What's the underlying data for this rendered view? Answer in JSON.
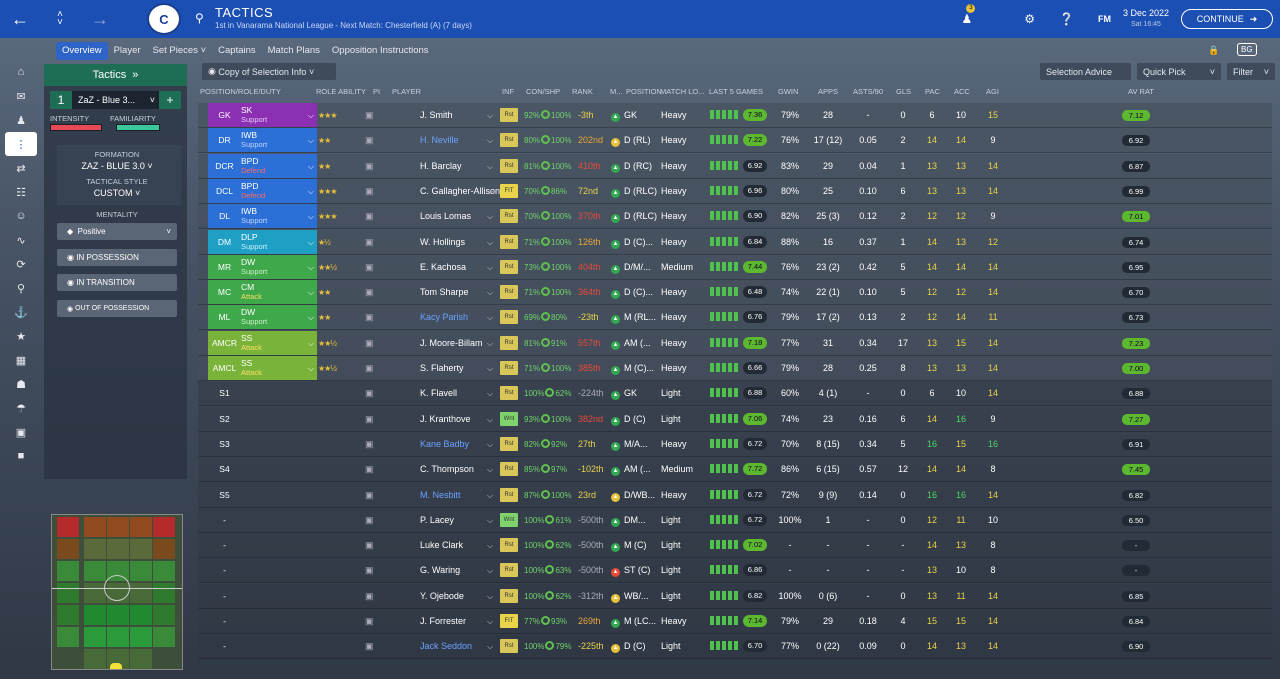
{
  "header": {
    "title": "TACTICS",
    "subtitle": "1st in Vanarama National League - Next Match: Chesterfield (A) (7 days)",
    "date": "3 Dec 2022",
    "time": "Sat 16:45",
    "continue_label": "CONTINUE",
    "notif_count": "3",
    "fm_label": "FM",
    "crest_text": "C"
  },
  "tabs": [
    "Overview",
    "Player",
    "Set Pieces",
    "Captains",
    "Match Plans",
    "Opposition Instructions"
  ],
  "left": {
    "tactics_label": "Tactics",
    "slot_number": "1",
    "tactic_name": "ZaZ - Blue 3...",
    "intensity_label": "INTENSITY",
    "familiarity_label": "FAMILIARITY",
    "formation_label": "FORMATION",
    "formation_value": "ZAZ - BLUE 3.0",
    "style_label": "TACTICAL STYLE",
    "style_value": "CUSTOM",
    "mentality_label": "MENTALITY",
    "mentality_value": "Positive",
    "in_possession": "IN POSSESSION",
    "in_transition": "IN TRANSITION",
    "out_possession": "OUT OF POSSESSION"
  },
  "toolbar": {
    "copy": "Copy of Selection Info",
    "selection_advice": "Selection Advice",
    "quick_pick": "Quick Pick",
    "filter": "Filter"
  },
  "headers": {
    "position": "POSITION/ROLE/DUTY",
    "role_ability": "ROLE ABILITY",
    "pi": "PI",
    "player": "PLAYER",
    "inf": "INF",
    "con": "CON/SHP",
    "rank": "RANK",
    "m": "M...",
    "positions": "POSITION",
    "match_load": "MATCH LO...",
    "last5": "LAST 5 GAMES",
    "gwin": "GWIN",
    "apps": "APPS",
    "asts": "ASTS/90",
    "gls": "GLS",
    "pac": "PAC",
    "acc": "ACC",
    "agi": "AGI",
    "avrat": "AV RAT"
  },
  "rows": [
    {
      "pos": "GK",
      "role": "SK",
      "duty": "Support",
      "roleColor": "#8b2fb3",
      "dutyColor": "#e6c6f5",
      "stars": "★★★",
      "player": "J. Smith",
      "link": false,
      "inf": "Rst",
      "con": "92%",
      "shp": "100%",
      "rank": "-3th",
      "rankColor": "#e8d34a",
      "dotColor": "#32a852",
      "posn": "GK",
      "load": "Heavy",
      "last": [
        "#4fc24d",
        "#4fc24d",
        "#4fc24d",
        "#4fc24d",
        "#4fc24d"
      ],
      "rating": "7.36",
      "rtBg": "#5cb82e",
      "gwin": "79%",
      "apps": "28",
      "asts": "-",
      "gls": "0",
      "pac": "6",
      "acc": "10",
      "agi": "15",
      "pacC": "wh",
      "accC": "wh",
      "agiC": "ye",
      "av": "7.12",
      "avBg": "#5cb82e"
    },
    {
      "pos": "DR",
      "role": "IWB",
      "duty": "Support",
      "roleColor": "#2c6fd6",
      "dutyColor": "#bfd6ff",
      "stars": "★★",
      "player": "H. Neville",
      "link": true,
      "inf": "Rst",
      "con": "80%",
      "shp": "100%",
      "rank": "202nd",
      "rankColor": "#e8a63a",
      "dotColor": "#e8c13a",
      "posn": "D (RL)",
      "load": "Heavy",
      "last": [
        "#4fc24d",
        "#4fc24d",
        "#4fc24d",
        "#4fc24d",
        "#4fc24d"
      ],
      "rating": "7.22",
      "rtBg": "#5cb82e",
      "gwin": "76%",
      "apps": "17 (12)",
      "asts": "0.05",
      "gls": "2",
      "pac": "14",
      "acc": "14",
      "agi": "9",
      "pacC": "ye",
      "accC": "ye",
      "agiC": "wh",
      "av": "6.92",
      "avBg": "#222a35"
    },
    {
      "pos": "DCR",
      "role": "BPD",
      "duty": "Defend",
      "roleColor": "#2c6fd6",
      "dutyColor": "#ff6a6a",
      "stars": "★★",
      "player": "H. Barclay",
      "link": false,
      "inf": "Rst",
      "con": "81%",
      "shp": "100%",
      "rank": "410th",
      "rankColor": "#e84a3a",
      "dotColor": "#32a852",
      "posn": "D (RC)",
      "load": "Heavy",
      "last": [
        "#4fc24d",
        "#4fc24d",
        "#4fc24d",
        "#4fc24d",
        "#4fc24d"
      ],
      "rating": "6.92",
      "rtBg": "#222a35",
      "gwin": "83%",
      "apps": "29",
      "asts": "0.04",
      "gls": "1",
      "pac": "13",
      "acc": "13",
      "agi": "14",
      "pacC": "ye",
      "accC": "ye",
      "agiC": "ye",
      "av": "6.87",
      "avBg": "#222a35"
    },
    {
      "pos": "DCL",
      "role": "BPD",
      "duty": "Defend",
      "roleColor": "#2c6fd6",
      "dutyColor": "#ff6a6a",
      "stars": "★★★",
      "player": "C. Gallagher-Allison",
      "link": false,
      "inf": "FIT",
      "con": "70%",
      "shp": "86%",
      "rank": "72nd",
      "rankColor": "#e8d34a",
      "dotColor": "#32a852",
      "posn": "D (RLC)",
      "load": "Heavy",
      "last": [
        "#4fc24d",
        "#4fc24d",
        "#4fc24d",
        "#4fc24d",
        "#4fc24d"
      ],
      "rating": "6.96",
      "rtBg": "#222a35",
      "gwin": "80%",
      "apps": "25",
      "asts": "0.10",
      "gls": "6",
      "pac": "13",
      "acc": "13",
      "agi": "14",
      "pacC": "ye",
      "accC": "ye",
      "agiC": "ye",
      "av": "6.99",
      "avBg": "#222a35"
    },
    {
      "pos": "DL",
      "role": "IWB",
      "duty": "Support",
      "roleColor": "#2c6fd6",
      "dutyColor": "#bfd6ff",
      "stars": "★★★",
      "player": "Louis Lomas",
      "link": false,
      "inf": "Rst",
      "con": "70%",
      "shp": "100%",
      "rank": "370th",
      "rankColor": "#e84a3a",
      "dotColor": "#32a852",
      "posn": "D (RLC)",
      "load": "Heavy",
      "last": [
        "#4fc24d",
        "#4fc24d",
        "#4fc24d",
        "#4fc24d",
        "#4fc24d"
      ],
      "rating": "6.90",
      "rtBg": "#222a35",
      "gwin": "82%",
      "apps": "25 (3)",
      "asts": "0.12",
      "gls": "2",
      "pac": "12",
      "acc": "12",
      "agi": "9",
      "pacC": "ye",
      "accC": "ye",
      "agiC": "wh",
      "av": "7.01",
      "avBg": "#5cb82e"
    },
    {
      "pos": "DM",
      "role": "DLP",
      "duty": "Support",
      "roleColor": "#1f9fc4",
      "dutyColor": "#c7f0ff",
      "stars": "★½",
      "player": "W. Hollings",
      "link": false,
      "inf": "Rst",
      "con": "71%",
      "shp": "100%",
      "rank": "126th",
      "rankColor": "#e8a63a",
      "dotColor": "#32a852",
      "posn": "D (C)...",
      "load": "Heavy",
      "last": [
        "#4fc24d",
        "#4fc24d",
        "#4fc24d",
        "#4fc24d",
        "#4fc24d"
      ],
      "rating": "6.84",
      "rtBg": "#222a35",
      "gwin": "88%",
      "apps": "16",
      "asts": "0.37",
      "gls": "1",
      "pac": "14",
      "acc": "13",
      "agi": "12",
      "pacC": "ye",
      "accC": "ye",
      "agiC": "ye",
      "av": "6.74",
      "avBg": "#222a35"
    },
    {
      "pos": "MR",
      "role": "DW",
      "duty": "Support",
      "roleColor": "#3fa84a",
      "dutyColor": "#c9f0c8",
      "stars": "★★½",
      "player": "E. Kachosa",
      "link": false,
      "inf": "Rst",
      "con": "73%",
      "shp": "100%",
      "rank": "404th",
      "rankColor": "#e84a3a",
      "dotColor": "#32a852",
      "posn": "D/M/...",
      "load": "Medium",
      "last": [
        "#4fc24d",
        "#4fc24d",
        "#4fc24d",
        "#4fc24d",
        "#4fc24d"
      ],
      "rating": "7.44",
      "rtBg": "#5cb82e",
      "gwin": "76%",
      "apps": "23 (2)",
      "asts": "0.42",
      "gls": "5",
      "pac": "14",
      "acc": "14",
      "agi": "14",
      "pacC": "ye",
      "accC": "ye",
      "agiC": "ye",
      "av": "6.95",
      "avBg": "#222a35"
    },
    {
      "pos": "MC",
      "role": "CM",
      "duty": "Attack",
      "roleColor": "#3fa84a",
      "dutyColor": "#ffe066",
      "stars": "★★",
      "player": "Tom Sharpe",
      "link": false,
      "inf": "Rst",
      "con": "71%",
      "shp": "100%",
      "rank": "364th",
      "rankColor": "#e84a3a",
      "dotColor": "#32a852",
      "posn": "D (C)...",
      "load": "Heavy",
      "last": [
        "#4fc24d",
        "#4fc24d",
        "#4fc24d",
        "#4fc24d",
        "#4fc24d"
      ],
      "rating": "6.48",
      "rtBg": "#222a35",
      "gwin": "74%",
      "apps": "22 (1)",
      "asts": "0.10",
      "gls": "5",
      "pac": "12",
      "acc": "12",
      "agi": "14",
      "pacC": "ye",
      "accC": "ye",
      "agiC": "ye",
      "av": "6.70",
      "avBg": "#222a35"
    },
    {
      "pos": "ML",
      "role": "DW",
      "duty": "Support",
      "roleColor": "#3fa84a",
      "dutyColor": "#c9f0c8",
      "stars": "★★",
      "player": "Kacy Parish",
      "link": true,
      "inf": "Rst",
      "con": "69%",
      "shp": "80%",
      "rank": "-23th",
      "rankColor": "#e8d34a",
      "dotColor": "#32a852",
      "posn": "M (RL...",
      "load": "Heavy",
      "last": [
        "#4fc24d",
        "#4fc24d",
        "#4fc24d",
        "#4fc24d",
        "#4fc24d"
      ],
      "rating": "6.76",
      "rtBg": "#222a35",
      "gwin": "79%",
      "apps": "17 (2)",
      "asts": "0.13",
      "gls": "2",
      "pac": "12",
      "acc": "14",
      "agi": "11",
      "pacC": "ye",
      "accC": "ye",
      "agiC": "ye",
      "av": "6.73",
      "avBg": "#222a35"
    },
    {
      "pos": "AMCR",
      "role": "SS",
      "duty": "Attack",
      "roleColor": "#7ab33a",
      "dutyColor": "#ffe066",
      "stars": "★★½",
      "player": "J. Moore-Billam",
      "link": false,
      "inf": "Rst",
      "con": "81%",
      "shp": "91%",
      "rank": "557th",
      "rankColor": "#e84a3a",
      "dotColor": "#32a852",
      "posn": "AM (...",
      "load": "Heavy",
      "last": [
        "#4fc24d",
        "#4fc24d",
        "#4fc24d",
        "#4fc24d",
        "#4fc24d"
      ],
      "rating": "7.18",
      "rtBg": "#5cb82e",
      "gwin": "77%",
      "apps": "31",
      "asts": "0.34",
      "gls": "17",
      "pac": "13",
      "acc": "15",
      "agi": "14",
      "pacC": "ye",
      "accC": "ye",
      "agiC": "ye",
      "av": "7.23",
      "avBg": "#5cb82e"
    },
    {
      "pos": "AMCL",
      "role": "SS",
      "duty": "Attack",
      "roleColor": "#7ab33a",
      "dutyColor": "#ffe066",
      "stars": "★★½",
      "player": "S. Flaherty",
      "link": false,
      "inf": "Rst",
      "con": "71%",
      "shp": "100%",
      "rank": "385th",
      "rankColor": "#e84a3a",
      "dotColor": "#32a852",
      "posn": "M (C)...",
      "load": "Heavy",
      "last": [
        "#4fc24d",
        "#4fc24d",
        "#4fc24d",
        "#4fc24d",
        "#4fc24d"
      ],
      "rating": "6.66",
      "rtBg": "#222a35",
      "gwin": "79%",
      "apps": "28",
      "asts": "0.25",
      "gls": "8",
      "pac": "13",
      "acc": "13",
      "agi": "14",
      "pacC": "ye",
      "accC": "ye",
      "agiC": "ye",
      "av": "7.00",
      "avBg": "#5cb82e"
    },
    {
      "pos": "S1",
      "role": "",
      "duty": "",
      "roleColor": "",
      "dutyColor": "",
      "stars": "",
      "player": "K. Flavell",
      "link": false,
      "inf": "Rst",
      "con": "100%",
      "shp": "62%",
      "rank": "-224th",
      "rankColor": "#aab",
      "dotColor": "#32a852",
      "posn": "GK",
      "load": "Light",
      "last": [
        "#4fc24d",
        "#4fc24d",
        "#4fc24d",
        "#4fc24d",
        "#4fc24d"
      ],
      "rating": "6.88",
      "rtBg": "#222a35",
      "gwin": "60%",
      "apps": "4 (1)",
      "asts": "-",
      "gls": "0",
      "pac": "6",
      "acc": "10",
      "agi": "14",
      "pacC": "wh",
      "accC": "wh",
      "agiC": "ye",
      "av": "6.88",
      "avBg": "#222a35"
    },
    {
      "pos": "S2",
      "role": "",
      "duty": "",
      "roleColor": "",
      "dutyColor": "",
      "stars": "",
      "player": "J. Kranthove",
      "link": false,
      "inf": "Wnt",
      "con": "93%",
      "shp": "100%",
      "rank": "382nd",
      "rankColor": "#e84a3a",
      "dotColor": "#32a852",
      "posn": "D (C)",
      "load": "Light",
      "last": [
        "#4fc24d",
        "#4fc24d",
        "#4fc24d",
        "#4fc24d",
        "#4fc24d"
      ],
      "rating": "7.06",
      "rtBg": "#5cb82e",
      "gwin": "74%",
      "apps": "23",
      "asts": "0.16",
      "gls": "6",
      "pac": "14",
      "acc": "16",
      "agi": "9",
      "pacC": "ye",
      "accC": "gr",
      "agiC": "wh",
      "av": "7.27",
      "avBg": "#5cb82e"
    },
    {
      "pos": "S3",
      "role": "",
      "duty": "",
      "roleColor": "",
      "dutyColor": "",
      "stars": "",
      "player": "Kane Badby",
      "link": true,
      "inf": "Rst",
      "con": "82%",
      "shp": "92%",
      "rank": "27th",
      "rankColor": "#e8d34a",
      "dotColor": "#32a852",
      "posn": "M/A...",
      "load": "Heavy",
      "last": [
        "#4fc24d",
        "#4fc24d",
        "#4fc24d",
        "#4fc24d",
        "#4fc24d"
      ],
      "rating": "6.72",
      "rtBg": "#222a35",
      "gwin": "70%",
      "apps": "8 (15)",
      "asts": "0.34",
      "gls": "5",
      "pac": "16",
      "acc": "15",
      "agi": "16",
      "pacC": "gr",
      "accC": "ye",
      "agiC": "gr",
      "av": "6.91",
      "avBg": "#222a35"
    },
    {
      "pos": "S4",
      "role": "",
      "duty": "",
      "roleColor": "",
      "dutyColor": "",
      "stars": "",
      "player": "C. Thompson",
      "link": false,
      "inf": "Rst",
      "con": "85%",
      "shp": "97%",
      "rank": "-102th",
      "rankColor": "#e8d34a",
      "dotColor": "#32a852",
      "posn": "AM (...",
      "load": "Medium",
      "last": [
        "#4fc24d",
        "#4fc24d",
        "#4fc24d",
        "#4fc24d",
        "#4fc24d"
      ],
      "rating": "7.72",
      "rtBg": "#5cb82e",
      "gwin": "86%",
      "apps": "6 (15)",
      "asts": "0.57",
      "gls": "12",
      "pac": "14",
      "acc": "14",
      "agi": "8",
      "pacC": "ye",
      "accC": "ye",
      "agiC": "wh",
      "av": "7.45",
      "avBg": "#5cb82e"
    },
    {
      "pos": "S5",
      "role": "",
      "duty": "",
      "roleColor": "",
      "dutyColor": "",
      "stars": "",
      "player": "M. Nesbitt",
      "link": true,
      "inf": "Rst",
      "con": "87%",
      "shp": "100%",
      "rank": "23rd",
      "rankColor": "#e8d34a",
      "dotColor": "#e8c13a",
      "posn": "D/WB...",
      "load": "Heavy",
      "last": [
        "#4fc24d",
        "#4fc24d",
        "#4fc24d",
        "#4fc24d",
        "#4fc24d"
      ],
      "rating": "6.72",
      "rtBg": "#222a35",
      "gwin": "72%",
      "apps": "9 (9)",
      "asts": "0.14",
      "gls": "0",
      "pac": "16",
      "acc": "16",
      "agi": "14",
      "pacC": "gr",
      "accC": "gr",
      "agiC": "ye",
      "av": "6.82",
      "avBg": "#222a35"
    },
    {
      "pos": "-",
      "role": "",
      "duty": "",
      "roleColor": "",
      "dutyColor": "",
      "stars": "",
      "player": "P. Lacey",
      "link": false,
      "inf": "Wnt",
      "con": "100%",
      "shp": "61%",
      "rank": "-500th",
      "rankColor": "#aab",
      "dotColor": "#32a852",
      "posn": "DM...",
      "load": "Light",
      "last": [
        "#4fc24d",
        "#4fc24d",
        "#4fc24d",
        "#4fc24d",
        "#4fc24d"
      ],
      "rating": "6.72",
      "rtBg": "#222a35",
      "gwin": "100%",
      "apps": "1",
      "asts": "-",
      "gls": "0",
      "pac": "12",
      "acc": "11",
      "agi": "10",
      "pacC": "ye",
      "accC": "ye",
      "agiC": "wh",
      "av": "6.50",
      "avBg": "#222a35"
    },
    {
      "pos": "-",
      "role": "",
      "duty": "",
      "roleColor": "",
      "dutyColor": "",
      "stars": "",
      "player": "Luke Clark",
      "link": false,
      "inf": "Rst",
      "con": "100%",
      "shp": "62%",
      "rank": "-500th",
      "rankColor": "#aab",
      "dotColor": "#32a852",
      "posn": "M (C)",
      "load": "Light",
      "last": [
        "#4fc24d",
        "#4fc24d",
        "#4fc24d",
        "#4fc24d",
        "#4fc24d"
      ],
      "rating": "7.02",
      "rtBg": "#5cb82e",
      "gwin": "-",
      "apps": "-",
      "asts": "-",
      "gls": "-",
      "pac": "14",
      "acc": "13",
      "agi": "8",
      "pacC": "ye",
      "accC": "ye",
      "agiC": "wh",
      "av": "-",
      "avBg": "#222a35"
    },
    {
      "pos": "-",
      "role": "",
      "duty": "",
      "roleColor": "",
      "dutyColor": "",
      "stars": "",
      "player": "G. Waring",
      "link": false,
      "inf": "Rst",
      "con": "100%",
      "shp": "63%",
      "rank": "-500th",
      "rankColor": "#aab",
      "dotColor": "#e84a3a",
      "posn": "ST (C)",
      "load": "Light",
      "last": [
        "#4fc24d",
        "#4fc24d",
        "#4fc24d",
        "#4fc24d",
        "#4fc24d"
      ],
      "rating": "6.86",
      "rtBg": "#222a35",
      "gwin": "-",
      "apps": "-",
      "asts": "-",
      "gls": "-",
      "pac": "13",
      "acc": "10",
      "agi": "8",
      "pacC": "ye",
      "accC": "wh",
      "agiC": "wh",
      "av": "-",
      "avBg": "#222a35"
    },
    {
      "pos": "-",
      "role": "",
      "duty": "",
      "roleColor": "",
      "dutyColor": "",
      "stars": "",
      "player": "Y. Ojebode",
      "link": false,
      "inf": "Rst",
      "con": "100%",
      "shp": "62%",
      "rank": "-312th",
      "rankColor": "#aab",
      "dotColor": "#e8c13a",
      "posn": "WB/...",
      "load": "Light",
      "last": [
        "#4fc24d",
        "#4fc24d",
        "#4fc24d",
        "#4fc24d",
        "#4fc24d"
      ],
      "rating": "6.82",
      "rtBg": "#222a35",
      "gwin": "100%",
      "apps": "0 (6)",
      "asts": "-",
      "gls": "0",
      "pac": "13",
      "acc": "11",
      "agi": "14",
      "pacC": "ye",
      "accC": "ye",
      "agiC": "ye",
      "av": "6.85",
      "avBg": "#222a35"
    },
    {
      "pos": "-",
      "role": "",
      "duty": "",
      "roleColor": "",
      "dutyColor": "",
      "stars": "",
      "player": "J. Forrester",
      "link": false,
      "inf": "FIT",
      "con": "77%",
      "shp": "93%",
      "rank": "269th",
      "rankColor": "#e8a63a",
      "dotColor": "#32a852",
      "posn": "M (LC...",
      "load": "Heavy",
      "last": [
        "#4fc24d",
        "#4fc24d",
        "#4fc24d",
        "#4fc24d",
        "#4fc24d"
      ],
      "rating": "7.14",
      "rtBg": "#5cb82e",
      "gwin": "79%",
      "apps": "29",
      "asts": "0.18",
      "gls": "4",
      "pac": "15",
      "acc": "15",
      "agi": "14",
      "pacC": "ye",
      "accC": "ye",
      "agiC": "ye",
      "av": "6.84",
      "avBg": "#222a35"
    },
    {
      "pos": "-",
      "role": "",
      "duty": "",
      "roleColor": "",
      "dutyColor": "",
      "stars": "",
      "player": "Jack Seddon",
      "link": true,
      "inf": "Rst",
      "con": "100%",
      "shp": "79%",
      "rank": "-225th",
      "rankColor": "#e8d34a",
      "dotColor": "#e8c13a",
      "posn": "D (C)",
      "load": "Light",
      "last": [
        "#4fc24d",
        "#4fc24d",
        "#4fc24d",
        "#4fc24d",
        "#4fc24d"
      ],
      "rating": "6.70",
      "rtBg": "#222a35",
      "gwin": "77%",
      "apps": "0 (22)",
      "asts": "0.09",
      "gls": "0",
      "pac": "14",
      "acc": "13",
      "agi": "14",
      "pacC": "ye",
      "accC": "ye",
      "agiC": "ye",
      "av": "6.90",
      "avBg": "#222a35"
    }
  ]
}
